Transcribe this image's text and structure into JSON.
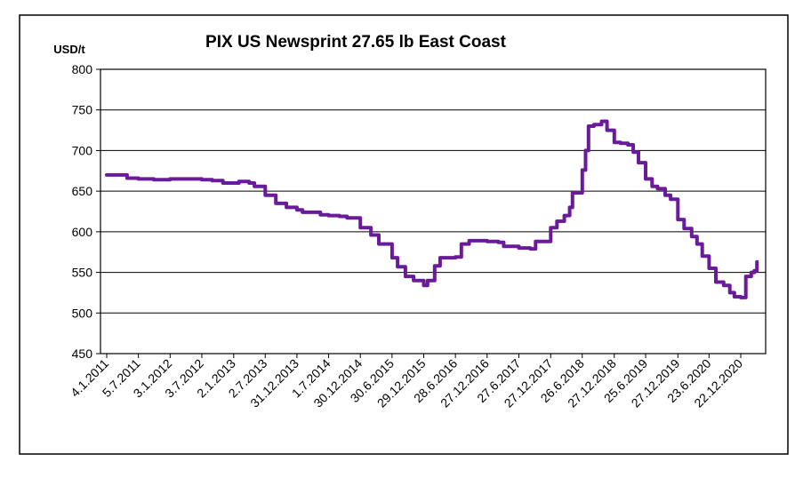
{
  "chart_data": {
    "type": "line",
    "title": "PIX US Newsprint 27.65 lb East Coast",
    "ylabel": "USD/t",
    "xlabel": "",
    "ylim": [
      450,
      800
    ],
    "y_ticks": [
      450,
      500,
      550,
      600,
      650,
      700,
      750,
      800
    ],
    "grid": true,
    "legend": "none",
    "x_ticks": [
      "4.1.2011",
      "5.7.2011",
      "3.1.2012",
      "3.7.2012",
      "2.1.2013",
      "2.7.2013",
      "31.12.2013",
      "1.7.2014",
      "30.12.2014",
      "30.6.2015",
      "29.12.2015",
      "28.6.2016",
      "27.12.2016",
      "27.6.2017",
      "27.12.2017",
      "26.6.2018",
      "27.12.2018",
      "25.6.2019",
      "27.12.2019",
      "23.6.2020",
      "22.12.2020"
    ],
    "series": [
      {
        "color": "#6a1b9a",
        "points": [
          [
            "2011-01-04",
            670
          ],
          [
            "2011-02-15",
            670
          ],
          [
            "2011-04-01",
            670
          ],
          [
            "2011-05-01",
            666
          ],
          [
            "2011-07-05",
            665
          ],
          [
            "2011-10-01",
            664
          ],
          [
            "2012-01-03",
            665
          ],
          [
            "2012-04-01",
            665
          ],
          [
            "2012-07-03",
            664
          ],
          [
            "2012-09-01",
            663
          ],
          [
            "2012-11-01",
            660
          ],
          [
            "2013-01-02",
            660
          ],
          [
            "2013-02-01",
            662
          ],
          [
            "2013-04-01",
            660
          ],
          [
            "2013-05-01",
            656
          ],
          [
            "2013-07-02",
            645
          ],
          [
            "2013-09-01",
            635
          ],
          [
            "2013-11-01",
            630
          ],
          [
            "2013-12-31",
            627
          ],
          [
            "2014-02-01",
            624
          ],
          [
            "2014-04-01",
            624
          ],
          [
            "2014-05-15",
            621
          ],
          [
            "2014-07-01",
            620
          ],
          [
            "2014-09-01",
            619
          ],
          [
            "2014-10-15",
            617
          ],
          [
            "2014-12-30",
            605
          ],
          [
            "2015-03-01",
            596
          ],
          [
            "2015-04-15",
            585
          ],
          [
            "2015-06-30",
            568
          ],
          [
            "2015-08-01",
            557
          ],
          [
            "2015-09-15",
            545
          ],
          [
            "2015-11-01",
            540
          ],
          [
            "2015-12-29",
            534
          ],
          [
            "2016-01-20",
            540
          ],
          [
            "2016-03-01",
            558
          ],
          [
            "2016-04-01",
            568
          ],
          [
            "2016-06-28",
            569
          ],
          [
            "2016-08-01",
            585
          ],
          [
            "2016-09-15",
            589
          ],
          [
            "2016-12-27",
            588
          ],
          [
            "2017-03-01",
            587
          ],
          [
            "2017-04-01",
            582
          ],
          [
            "2017-06-27",
            580
          ],
          [
            "2017-09-01",
            579
          ],
          [
            "2017-10-01",
            588
          ],
          [
            "2017-12-27",
            605
          ],
          [
            "2018-02-01",
            613
          ],
          [
            "2018-03-15",
            620
          ],
          [
            "2018-04-15",
            630
          ],
          [
            "2018-05-01",
            648
          ],
          [
            "2018-06-26",
            676
          ],
          [
            "2018-07-15",
            700
          ],
          [
            "2018-08-01",
            730
          ],
          [
            "2018-09-01",
            732
          ],
          [
            "2018-10-15",
            736
          ],
          [
            "2018-11-15",
            725
          ],
          [
            "2018-12-27",
            710
          ],
          [
            "2019-02-01",
            709
          ],
          [
            "2019-03-15",
            707
          ],
          [
            "2019-04-15",
            698
          ],
          [
            "2019-05-15",
            685
          ],
          [
            "2019-06-25",
            665
          ],
          [
            "2019-08-01",
            656
          ],
          [
            "2019-09-01",
            653
          ],
          [
            "2019-10-15",
            645
          ],
          [
            "2019-11-15",
            640
          ],
          [
            "2019-12-27",
            615
          ],
          [
            "2020-02-01",
            604
          ],
          [
            "2020-03-15",
            594
          ],
          [
            "2020-04-15",
            585
          ],
          [
            "2020-05-15",
            570
          ],
          [
            "2020-06-23",
            555
          ],
          [
            "2020-08-01",
            538
          ],
          [
            "2020-09-15",
            534
          ],
          [
            "2020-10-20",
            525
          ],
          [
            "2020-11-15",
            520
          ],
          [
            "2020-12-22",
            519
          ],
          [
            "2021-01-20",
            545
          ],
          [
            "2021-02-20",
            550
          ],
          [
            "2021-03-10",
            552
          ],
          [
            "2021-03-25",
            563
          ]
        ]
      }
    ]
  }
}
